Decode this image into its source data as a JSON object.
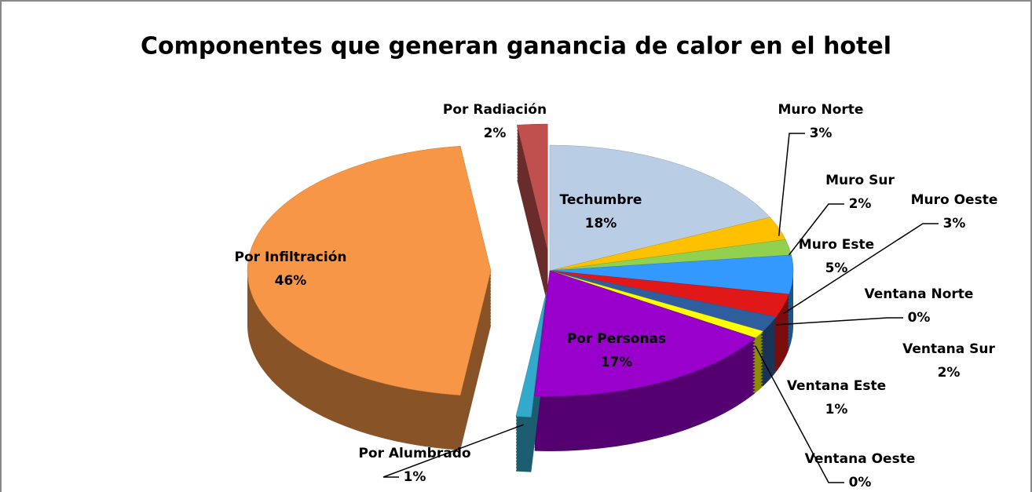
{
  "chart_data": {
    "type": "pie",
    "title": "Componentes que generan ganancia de calor en el hotel",
    "categories": [
      "Techumbre",
      "Muro Norte",
      "Muro Sur",
      "Muro Este",
      "Muro Oeste",
      "Ventana Norte",
      "Ventana Sur",
      "Ventana Este",
      "Ventana Oeste",
      "Por Personas",
      "Por Alumbrado",
      "Por Infiltración",
      "Por Radiación"
    ],
    "values": [
      18,
      3,
      2,
      5,
      3,
      0,
      2,
      1,
      0,
      17,
      1,
      46,
      2
    ],
    "value_labels": [
      "18%",
      "3%",
      "2%",
      "5%",
      "3%",
      "0%",
      "2%",
      "1%",
      "0%",
      "17%",
      "1%",
      "46%",
      "2%"
    ],
    "colors": [
      "#b9cde5",
      "#ffc000",
      "#92d050",
      "#3399ff",
      "#e01818",
      "#ff66cc",
      "#2e5e9e",
      "#ffff00",
      "#808000",
      "#9900cc",
      "#33aacc",
      "#f79646",
      "#c0504d"
    ]
  }
}
